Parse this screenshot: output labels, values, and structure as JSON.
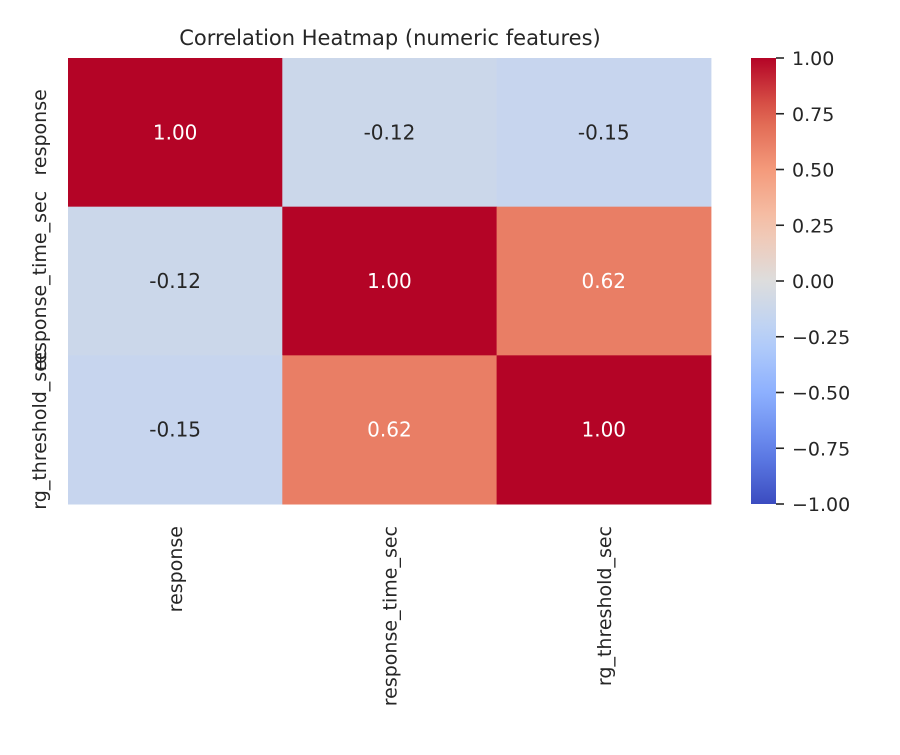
{
  "chart_data": {
    "type": "heatmap",
    "title": "Correlation Heatmap (numeric features)",
    "row_labels": [
      "response",
      "response_time_sec",
      "rg_threshold_sec"
    ],
    "col_labels": [
      "response",
      "response_time_sec",
      "rg_threshold_sec"
    ],
    "values": [
      [
        1.0,
        -0.12,
        -0.15
      ],
      [
        -0.12,
        1.0,
        0.62
      ],
      [
        -0.15,
        0.62,
        1.0
      ]
    ],
    "value_format": "0.00",
    "colormap": "coolwarm",
    "vmin": -1.0,
    "vmax": 1.0,
    "colorbar_ticks": [
      1.0,
      0.75,
      0.5,
      0.25,
      0.0,
      -0.25,
      -0.5,
      -0.75,
      -1.0
    ],
    "colorbar_tick_labels": [
      "1.00",
      "0.75",
      "0.50",
      "0.25",
      "0.00",
      "−0.25",
      "−0.50",
      "−0.75",
      "−1.00"
    ],
    "colors": {
      "positive_max": "#b40426",
      "negative_max": "#3b4cc0",
      "neutral": "#dddddd",
      "text_dark": "#262626",
      "text_light": "#ffffff"
    }
  }
}
